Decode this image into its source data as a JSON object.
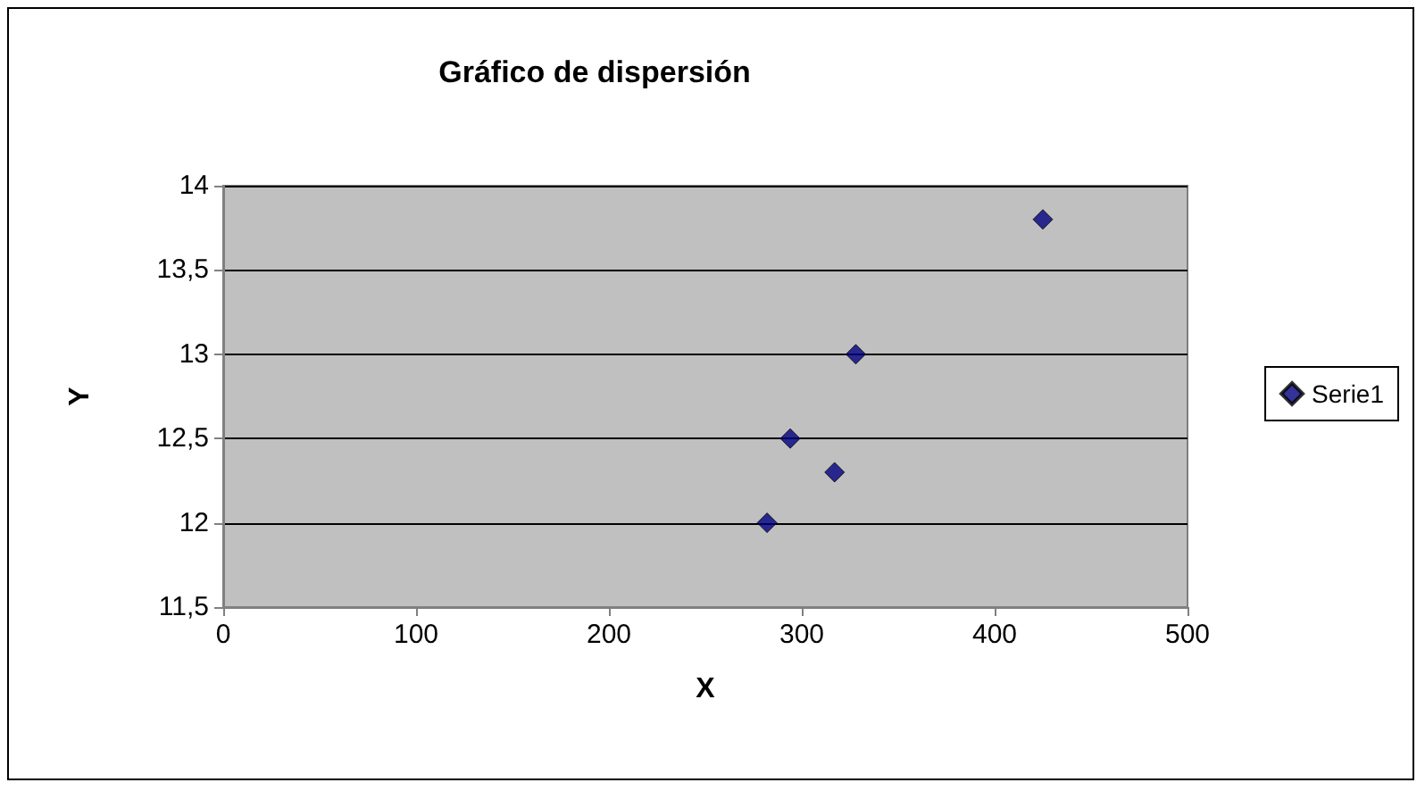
{
  "chart_data": {
    "type": "scatter",
    "title": "Gráfico de dispersión",
    "xlabel": "X",
    "ylabel": "Y",
    "x": [
      282,
      294,
      317,
      328,
      425
    ],
    "series": [
      {
        "name": "Serie1",
        "color": "#000080",
        "values": [
          12,
          12.5,
          12.3,
          13,
          13.8
        ]
      }
    ],
    "xlim": [
      0,
      500
    ],
    "xticks": [
      0,
      100,
      200,
      300,
      400,
      500
    ],
    "ylim": [
      11.5,
      14
    ],
    "yticks": [
      {
        "value": 11.5,
        "label": "11,5"
      },
      12,
      {
        "value": 12.5,
        "label": "12,5"
      },
      13,
      {
        "value": 13.5,
        "label": "13,5"
      },
      14
    ],
    "grid": "y",
    "legend": "right",
    "marker": "diamond"
  }
}
